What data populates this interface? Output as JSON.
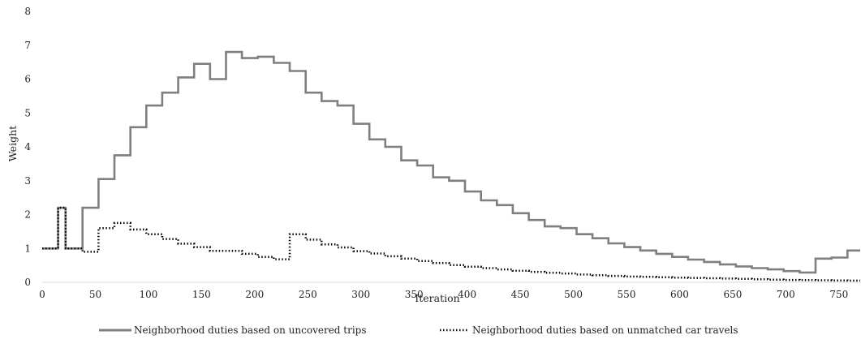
{
  "chart_data": {
    "type": "line",
    "xlabel": "Iteration",
    "ylabel": "Weight",
    "xlim": [
      0,
      770
    ],
    "ylim": [
      0,
      8
    ],
    "x_ticks": [
      "0",
      "50",
      "100",
      "150",
      "200",
      "250",
      "300",
      "350",
      "400",
      "450",
      "500",
      "550",
      "600",
      "650",
      "700",
      "750"
    ],
    "y_ticks": [
      "0",
      "1",
      "2",
      "3",
      "4",
      "5",
      "6",
      "7",
      "8"
    ],
    "grid": false,
    "legend_position": "bottom",
    "series": [
      {
        "name": "Neighborhood duties based on uncovered trips",
        "color": "#7f7f7f",
        "style": "solid",
        "steps": [
          [
            0,
            1.0
          ],
          [
            15,
            2.2
          ],
          [
            22,
            1.0
          ],
          [
            38,
            2.2
          ],
          [
            53,
            3.05
          ],
          [
            68,
            3.75
          ],
          [
            83,
            4.58
          ],
          [
            98,
            5.22
          ],
          [
            113,
            5.6
          ],
          [
            128,
            6.05
          ],
          [
            143,
            6.45
          ],
          [
            158,
            6.0
          ],
          [
            173,
            6.8
          ],
          [
            188,
            6.62
          ],
          [
            203,
            6.66
          ],
          [
            218,
            6.48
          ],
          [
            233,
            6.24
          ],
          [
            248,
            5.6
          ],
          [
            263,
            5.35
          ],
          [
            278,
            5.22
          ],
          [
            293,
            4.68
          ],
          [
            308,
            4.22
          ],
          [
            323,
            4.0
          ],
          [
            338,
            3.6
          ],
          [
            353,
            3.45
          ],
          [
            368,
            3.1
          ],
          [
            383,
            3.0
          ],
          [
            398,
            2.68
          ],
          [
            413,
            2.42
          ],
          [
            428,
            2.28
          ],
          [
            443,
            2.04
          ],
          [
            458,
            1.84
          ],
          [
            473,
            1.65
          ],
          [
            488,
            1.6
          ],
          [
            503,
            1.42
          ],
          [
            518,
            1.3
          ],
          [
            533,
            1.15
          ],
          [
            548,
            1.04
          ],
          [
            563,
            0.94
          ],
          [
            578,
            0.84
          ],
          [
            593,
            0.75
          ],
          [
            608,
            0.67
          ],
          [
            623,
            0.6
          ],
          [
            638,
            0.53
          ],
          [
            653,
            0.47
          ],
          [
            668,
            0.42
          ],
          [
            683,
            0.38
          ],
          [
            698,
            0.33
          ],
          [
            713,
            0.29
          ],
          [
            728,
            0.7
          ],
          [
            743,
            0.73
          ],
          [
            758,
            0.94
          ],
          [
            770,
            0.94
          ]
        ]
      },
      {
        "name": "Neighborhood duties based on unmatched car travels",
        "color": "#000000",
        "style": "dotted",
        "steps": [
          [
            0,
            1.0
          ],
          [
            15,
            2.2
          ],
          [
            22,
            1.0
          ],
          [
            38,
            0.9
          ],
          [
            53,
            1.6
          ],
          [
            68,
            1.75
          ],
          [
            83,
            1.56
          ],
          [
            98,
            1.42
          ],
          [
            113,
            1.28
          ],
          [
            128,
            1.14
          ],
          [
            143,
            1.04
          ],
          [
            158,
            0.93
          ],
          [
            173,
            0.93
          ],
          [
            188,
            0.84
          ],
          [
            203,
            0.75
          ],
          [
            218,
            0.68
          ],
          [
            233,
            1.42
          ],
          [
            248,
            1.26
          ],
          [
            263,
            1.12
          ],
          [
            278,
            1.03
          ],
          [
            293,
            0.92
          ],
          [
            308,
            0.85
          ],
          [
            323,
            0.77
          ],
          [
            338,
            0.7
          ],
          [
            353,
            0.63
          ],
          [
            368,
            0.57
          ],
          [
            383,
            0.51
          ],
          [
            398,
            0.46
          ],
          [
            413,
            0.42
          ],
          [
            428,
            0.38
          ],
          [
            443,
            0.34
          ],
          [
            458,
            0.31
          ],
          [
            473,
            0.28
          ],
          [
            488,
            0.26
          ],
          [
            503,
            0.23
          ],
          [
            518,
            0.21
          ],
          [
            533,
            0.19
          ],
          [
            548,
            0.17
          ],
          [
            563,
            0.16
          ],
          [
            578,
            0.15
          ],
          [
            593,
            0.14
          ],
          [
            608,
            0.13
          ],
          [
            623,
            0.12
          ],
          [
            638,
            0.11
          ],
          [
            653,
            0.1
          ],
          [
            668,
            0.09
          ],
          [
            683,
            0.08
          ],
          [
            698,
            0.07
          ],
          [
            713,
            0.065
          ],
          [
            728,
            0.06
          ],
          [
            743,
            0.055
          ],
          [
            758,
            0.05
          ],
          [
            770,
            0.05
          ]
        ]
      }
    ]
  }
}
